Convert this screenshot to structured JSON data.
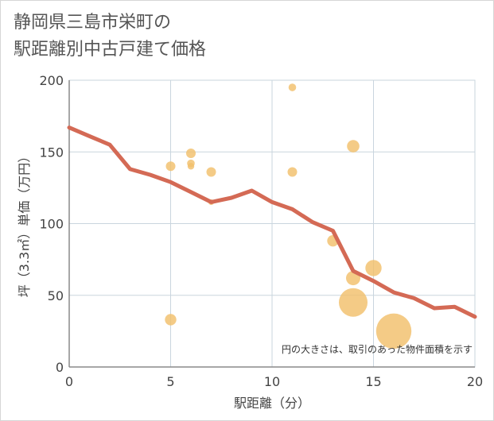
{
  "chart_data": {
    "type": "scatter",
    "title_lines": [
      "静岡県三島市栄町の",
      "駅距離別中古戸建て価格"
    ],
    "xlabel": "駅距離（分）",
    "ylabel": "坪（3.3㎡）単価（万円）",
    "xlim": [
      0,
      20
    ],
    "ylim": [
      0,
      200
    ],
    "x_ticks": [
      0,
      5,
      10,
      15,
      20
    ],
    "y_ticks": [
      0,
      50,
      100,
      150,
      200
    ],
    "grid": true,
    "note": "円の大きさは、取引のあった物件面積を示す",
    "colors": {
      "bubble": "#f1bf6b",
      "trend": "#d46a55",
      "grid": "#c9d5de",
      "axis": "#8a8a8a",
      "plot_background": "#ffffff"
    },
    "scatter": [
      {
        "x": 5,
        "y": 140,
        "size": 1.0
      },
      {
        "x": 5,
        "y": 33,
        "size": 1.2
      },
      {
        "x": 6,
        "y": 149,
        "size": 1.0
      },
      {
        "x": 6,
        "y": 142,
        "size": 0.8
      },
      {
        "x": 6,
        "y": 140,
        "size": 0.7
      },
      {
        "x": 7,
        "y": 136,
        "size": 1.0
      },
      {
        "x": 7,
        "y": 115,
        "size": 0.6
      },
      {
        "x": 11,
        "y": 195,
        "size": 0.8
      },
      {
        "x": 11,
        "y": 136,
        "size": 1.0
      },
      {
        "x": 13,
        "y": 88,
        "size": 1.2
      },
      {
        "x": 14,
        "y": 154,
        "size": 1.3
      },
      {
        "x": 14,
        "y": 62,
        "size": 1.5
      },
      {
        "x": 14,
        "y": 45,
        "size": 3.0
      },
      {
        "x": 15,
        "y": 69,
        "size": 1.7
      },
      {
        "x": 16,
        "y": 25,
        "size": 3.7
      }
    ],
    "trend": {
      "x": [
        0,
        1,
        2,
        3,
        4,
        5,
        6,
        7,
        8,
        9,
        10,
        11,
        12,
        13,
        14,
        15,
        16,
        17,
        18,
        19,
        20
      ],
      "y": [
        167,
        161,
        155,
        138,
        134,
        129,
        122,
        115,
        118,
        123,
        115,
        110,
        101,
        95,
        67,
        60,
        52,
        48,
        41,
        42,
        35
      ]
    }
  }
}
